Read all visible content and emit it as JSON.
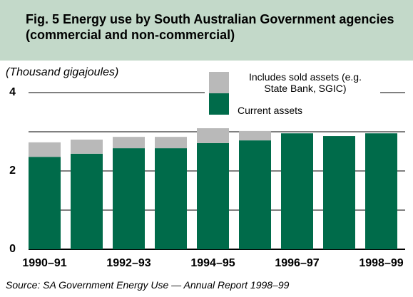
{
  "chart_data": {
    "type": "stacked_bar",
    "title": "Fig. 5  Energy use by South Australian Government agencies (commercial and non-commercial)",
    "ylabel": "(Thousand gigajoules)",
    "source": "Source: SA Government Energy Use — Annual Report 1998–99",
    "categories": [
      "1990–91",
      null,
      "1992–93",
      null,
      "1994–95",
      null,
      "1996–97",
      null,
      "1998–99"
    ],
    "series": [
      {
        "name": "Current assets",
        "color": "#006b4a",
        "values": [
          2.36,
          2.44,
          2.58,
          2.58,
          2.71,
          2.78,
          2.96,
          2.89,
          2.96
        ]
      },
      {
        "name": "Includes sold assets (e.g. State Bank, SGIC)",
        "color": "#b9b9b9",
        "values": [
          0.37,
          0.36,
          0.29,
          0.29,
          0.38,
          0.24,
          0,
          0,
          0
        ]
      }
    ],
    "ylim": [
      0,
      4
    ],
    "yticks": [
      0,
      2,
      4
    ],
    "minor_yticks": [
      1,
      3
    ],
    "grid": true
  }
}
